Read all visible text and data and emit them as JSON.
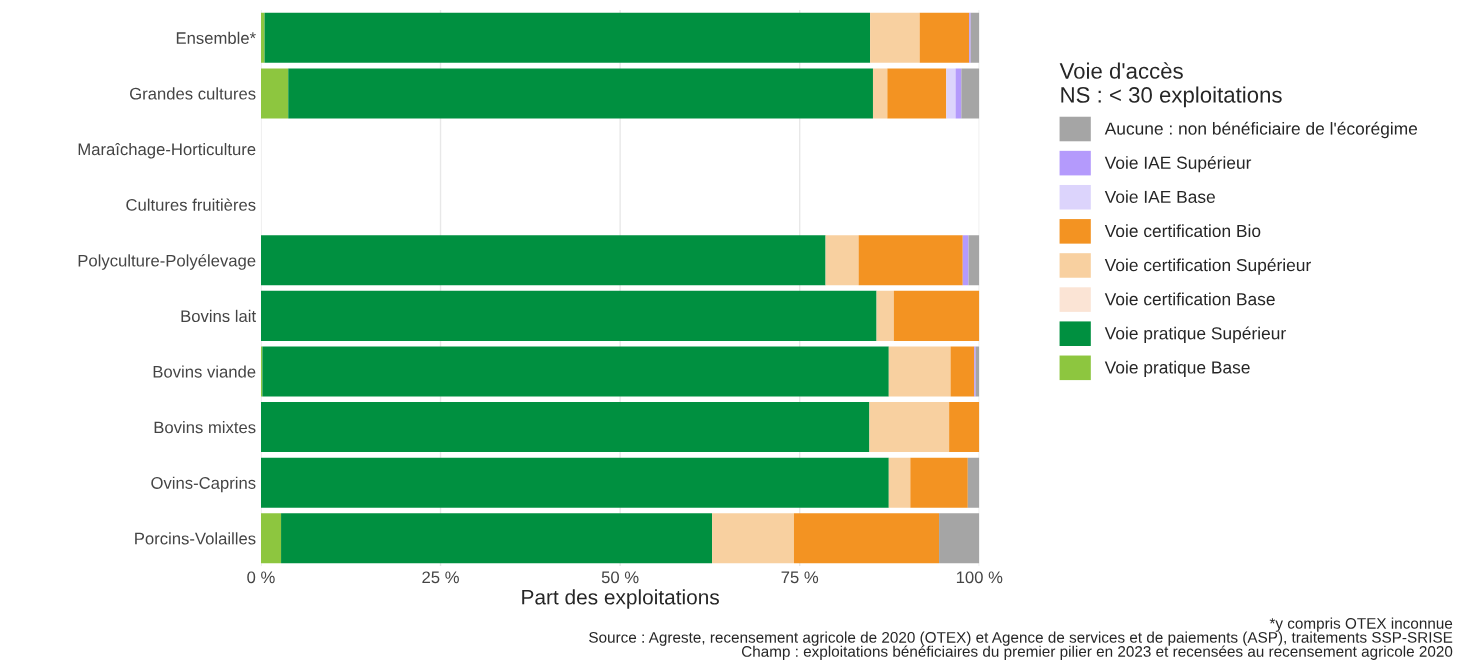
{
  "chart_data": {
    "type": "bar",
    "orientation": "horizontal",
    "stacked": true,
    "categories": [
      "Ensemble*",
      "Grandes cultures",
      "Maraîchage-Horticulture",
      "Cultures fruitières",
      "Polyculture-Polyélevage",
      "Bovins lait",
      "Bovins viande",
      "Bovins mixtes",
      "Ovins-Caprins",
      "Porcins-Volailles"
    ],
    "series": [
      {
        "name": "Voie pratique Base",
        "color": "#8dc63f",
        "values": [
          0.5,
          3.8,
          null,
          null,
          0,
          0,
          0.2,
          0,
          0,
          2.8
        ]
      },
      {
        "name": "Voie pratique Supérieur",
        "color": "#009040",
        "values": [
          84.3,
          81.4,
          null,
          null,
          78.6,
          85.7,
          87.2,
          84.7,
          87.4,
          60.0
        ]
      },
      {
        "name": "Voie certification Base",
        "color": "#fbe4d5",
        "values": [
          0,
          0,
          null,
          null,
          0,
          0,
          0,
          0,
          0,
          0
        ]
      },
      {
        "name": "Voie certification Supérieur",
        "color": "#f8d0a0",
        "values": [
          6.9,
          2.0,
          null,
          null,
          4.6,
          2.4,
          8.6,
          11.1,
          3.0,
          11.4
        ]
      },
      {
        "name": "Voie certification Bio",
        "color": "#f39322",
        "values": [
          6.9,
          8.2,
          null,
          null,
          14.5,
          11.9,
          3.3,
          4.2,
          8.0,
          20.2
        ]
      },
      {
        "name": "Voie IAE Base",
        "color": "#dcd4fc",
        "values": [
          0,
          1.3,
          null,
          null,
          0,
          0,
          0,
          0,
          0,
          0
        ]
      },
      {
        "name": "Voie IAE Supérieur",
        "color": "#b49afc",
        "values": [
          0.2,
          0.8,
          null,
          null,
          0.8,
          0,
          0.2,
          0,
          0,
          0
        ]
      },
      {
        "name": "Aucune : non bénéficiaire de l'écorégime",
        "color": "#a5a5a5",
        "values": [
          1.2,
          2.5,
          null,
          null,
          1.5,
          0,
          0.5,
          0,
          1.6,
          5.6
        ]
      }
    ],
    "xlim": [
      0,
      100
    ],
    "xticks": [
      {
        "value": 0,
        "label": "0 %"
      },
      {
        "value": 25,
        "label": "25 %"
      },
      {
        "value": 50,
        "label": "50 %"
      },
      {
        "value": 75,
        "label": "75 %"
      },
      {
        "value": 100,
        "label": "100 %"
      }
    ],
    "xlabel": "Part des exploitations",
    "legend_title": "Voie d'accès\nNS : < 30 exploitations",
    "legend": "right",
    "grid": "x",
    "annotations": [
      "*y compris OTEX inconnue",
      "Source : Agreste, recensement agricole de 2020 (OTEX) et Agence de services et de paiements (ASP), traitements SSP-SRISE",
      "Champ : exploitations bénéficiaires du premier pilier en 2023 et recensées au recensement agricole 2020"
    ]
  }
}
